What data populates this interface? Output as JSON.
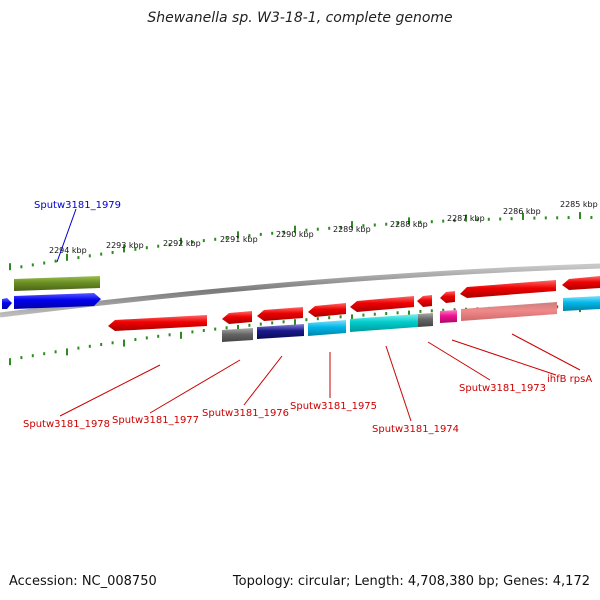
{
  "title": "Shewanella sp. W3-18-1, complete genome",
  "footer": {
    "accession": "Accession: NC_008750",
    "summary": "Topology: circular; Length: 4,708,380 bp; Genes: 4,172"
  },
  "colors": {
    "backbone": "#8a8a8a",
    "ticks": "#2e8b22",
    "label_red": "#cc0000",
    "label_blue": "#0000cc"
  },
  "scale_labels": [
    "2294 kbp",
    "2293 kbp",
    "2292 kbp",
    "2291 kbp",
    "2290 kbp",
    "2289 kbp",
    "2288 kbp",
    "2287 kbp",
    "2286 kbp",
    "2285 kbp"
  ],
  "gene_labels": [
    {
      "text": "Sputw3181_1979",
      "color": "blue"
    },
    {
      "text": "Sputw3181_1978",
      "color": "red"
    },
    {
      "text": "Sputw3181_1977",
      "color": "red"
    },
    {
      "text": "Sputw3181_1976",
      "color": "red"
    },
    {
      "text": "Sputw3181_1975",
      "color": "red"
    },
    {
      "text": "Sputw3181_1974",
      "color": "red"
    },
    {
      "text": "Sputw3181_1973",
      "color": "red"
    },
    {
      "text": "ihfB rpsA",
      "color": "red"
    }
  ],
  "feature_colors": [
    "#6b8e23",
    "#0000ee",
    "#ee0000",
    "#666666",
    "#1a1a8c",
    "#00b7e6",
    "#00cccc",
    "#ee1190",
    "#f08a8a"
  ]
}
